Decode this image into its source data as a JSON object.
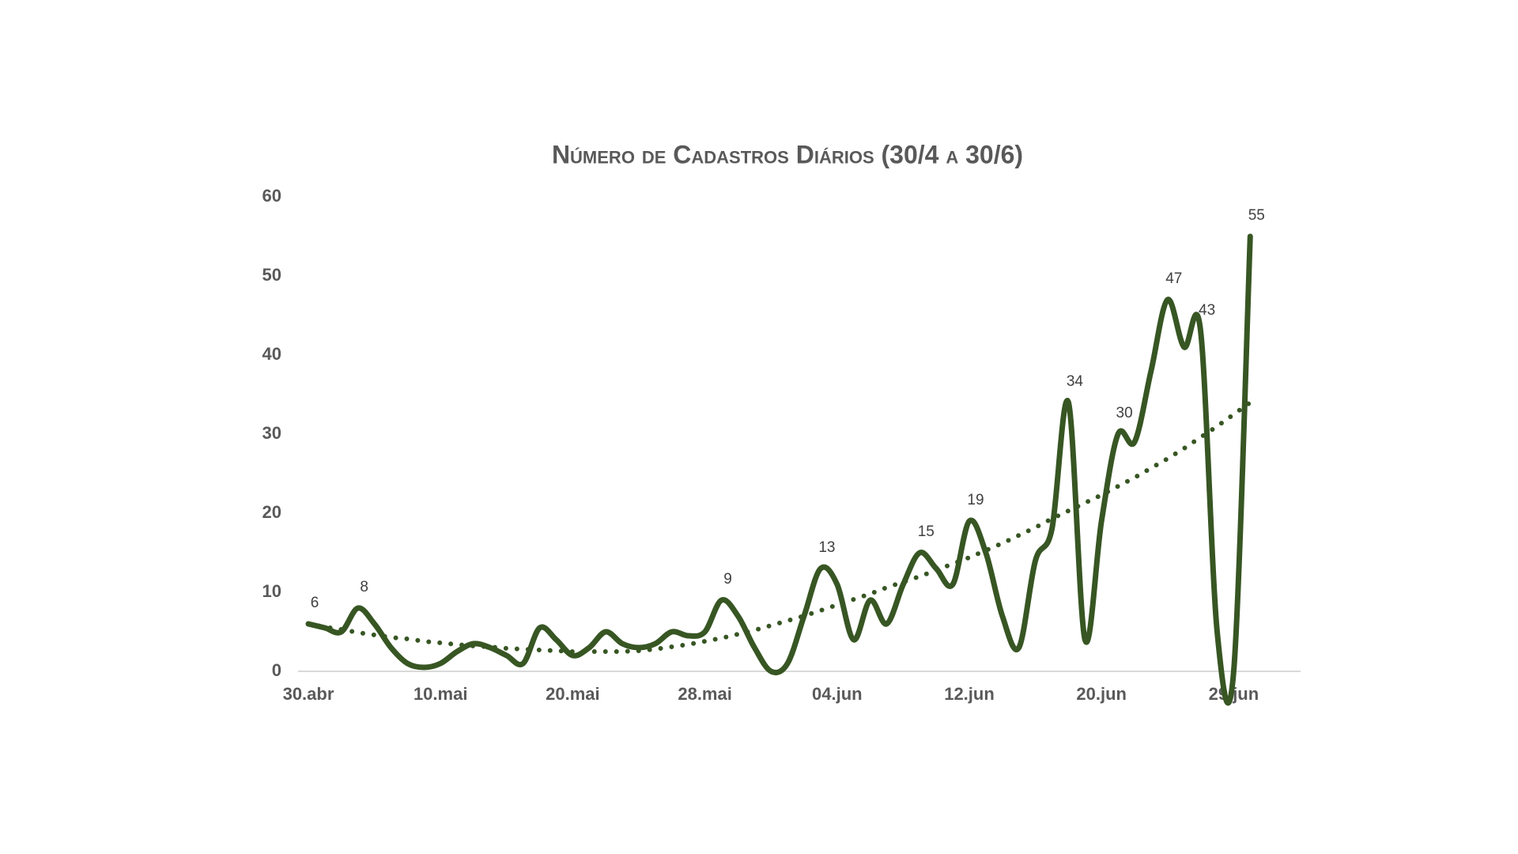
{
  "chart_data": {
    "type": "line",
    "title": "Número de Cadastros Diários (30/4 a 30/6)",
    "categories": [
      "30.abr",
      null,
      null,
      null,
      null,
      null,
      null,
      null,
      "10.mai",
      null,
      null,
      null,
      null,
      null,
      null,
      null,
      "20.mai",
      null,
      null,
      null,
      null,
      null,
      null,
      null,
      "28.mai",
      null,
      null,
      null,
      null,
      null,
      null,
      null,
      "04.jun",
      null,
      null,
      null,
      null,
      null,
      null,
      null,
      "12.jun",
      null,
      null,
      null,
      null,
      null,
      null,
      null,
      "20.jun",
      null,
      null,
      null,
      null,
      null,
      null,
      null,
      "29.jun",
      null
    ],
    "series": [
      {
        "color": "#375623",
        "smooth": true,
        "values": [
          6,
          5.5,
          5,
          8,
          6,
          3,
          1,
          0.5,
          1,
          2.5,
          3.5,
          3,
          2,
          1,
          5.5,
          4,
          2,
          3,
          5,
          3.5,
          3,
          3.5,
          5,
          4.5,
          5,
          9,
          7,
          3,
          0,
          1,
          7,
          13,
          11,
          4,
          9,
          6,
          11,
          15,
          13,
          11,
          19,
          15,
          7,
          3,
          14,
          18,
          34,
          4,
          19,
          30,
          29,
          38,
          47,
          41,
          43,
          5,
          0,
          55
        ],
        "value_labels": [
          "6",
          null,
          null,
          "8",
          null,
          null,
          null,
          null,
          null,
          null,
          null,
          null,
          null,
          null,
          null,
          null,
          null,
          null,
          null,
          null,
          null,
          null,
          null,
          null,
          null,
          "9",
          null,
          null,
          null,
          null,
          null,
          "13",
          null,
          null,
          null,
          null,
          null,
          "15",
          null,
          null,
          "19",
          null,
          null,
          null,
          null,
          null,
          "34",
          null,
          null,
          "30",
          null,
          null,
          "47",
          null,
          "43",
          null,
          null,
          "55"
        ]
      },
      {
        "color": "#375623",
        "dotted": true,
        "trendline": true,
        "values": [
          6,
          5.6,
          5.3,
          4.9,
          4.6,
          4.3,
          4.1,
          3.8,
          3.6,
          3.4,
          3.2,
          3.1,
          2.9,
          2.8,
          2.7,
          2.6,
          2.5,
          2.5,
          2.5,
          2.5,
          2.6,
          2.8,
          3.1,
          3.4,
          3.8,
          4.2,
          4.7,
          5.2,
          5.8,
          6.4,
          7,
          7.7,
          8.4,
          9.1,
          9.8,
          10.6,
          11.3,
          12,
          12.8,
          13.6,
          14.4,
          15.3,
          16.2,
          17.2,
          18.2,
          19.3,
          20.3,
          21.3,
          22.3,
          23.4,
          24.5,
          25.7,
          26.9,
          28.2,
          29.6,
          31,
          32.5,
          34
        ]
      }
    ],
    "ylim": [
      0,
      60
    ],
    "yticks": [
      0,
      10,
      20,
      30,
      40,
      50,
      60
    ],
    "grid": false
  }
}
